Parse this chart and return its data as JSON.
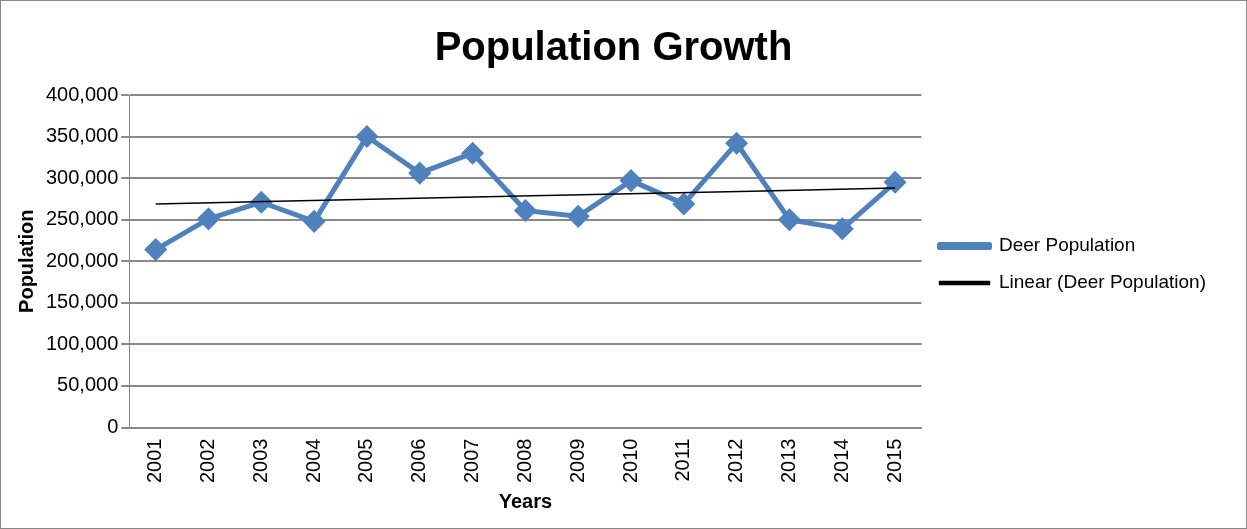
{
  "chart_data": {
    "type": "line",
    "title": "Population Growth",
    "xlabel": "Years",
    "ylabel": "Population",
    "categories": [
      "2001",
      "2002",
      "2003",
      "2004",
      "2005",
      "2006",
      "2007",
      "2008",
      "2009",
      "2010",
      "2011",
      "2012",
      "2013",
      "2014",
      "2015"
    ],
    "series": [
      {
        "name": "Deer Population",
        "color": "#4f81bd",
        "values": [
          214000,
          251000,
          271000,
          248000,
          350000,
          306000,
          330000,
          261000,
          254000,
          297000,
          269000,
          342000,
          250000,
          239000,
          295000
        ],
        "marker": "diamond"
      },
      {
        "name": "Linear (Deer Population)",
        "type": "line",
        "color": "#000000",
        "values": [
          269000,
          null,
          null,
          null,
          null,
          null,
          null,
          null,
          null,
          null,
          null,
          null,
          null,
          null,
          288000
        ],
        "marker": "none"
      }
    ],
    "ylim": [
      0,
      400000
    ],
    "yticks": [
      0,
      {
        "value": 50000,
        "label": "50,000"
      },
      {
        "value": 100000,
        "label": "100,000"
      },
      {
        "value": 150000,
        "label": "150,000"
      },
      {
        "value": 200000,
        "label": "200,000"
      },
      {
        "value": 250000,
        "label": "250,000"
      },
      {
        "value": 300000,
        "label": "300,000"
      },
      {
        "value": 350000,
        "label": "350,000"
      },
      {
        "value": 400000,
        "label": "400,000"
      }
    ],
    "grid": "y",
    "legend": "right"
  }
}
